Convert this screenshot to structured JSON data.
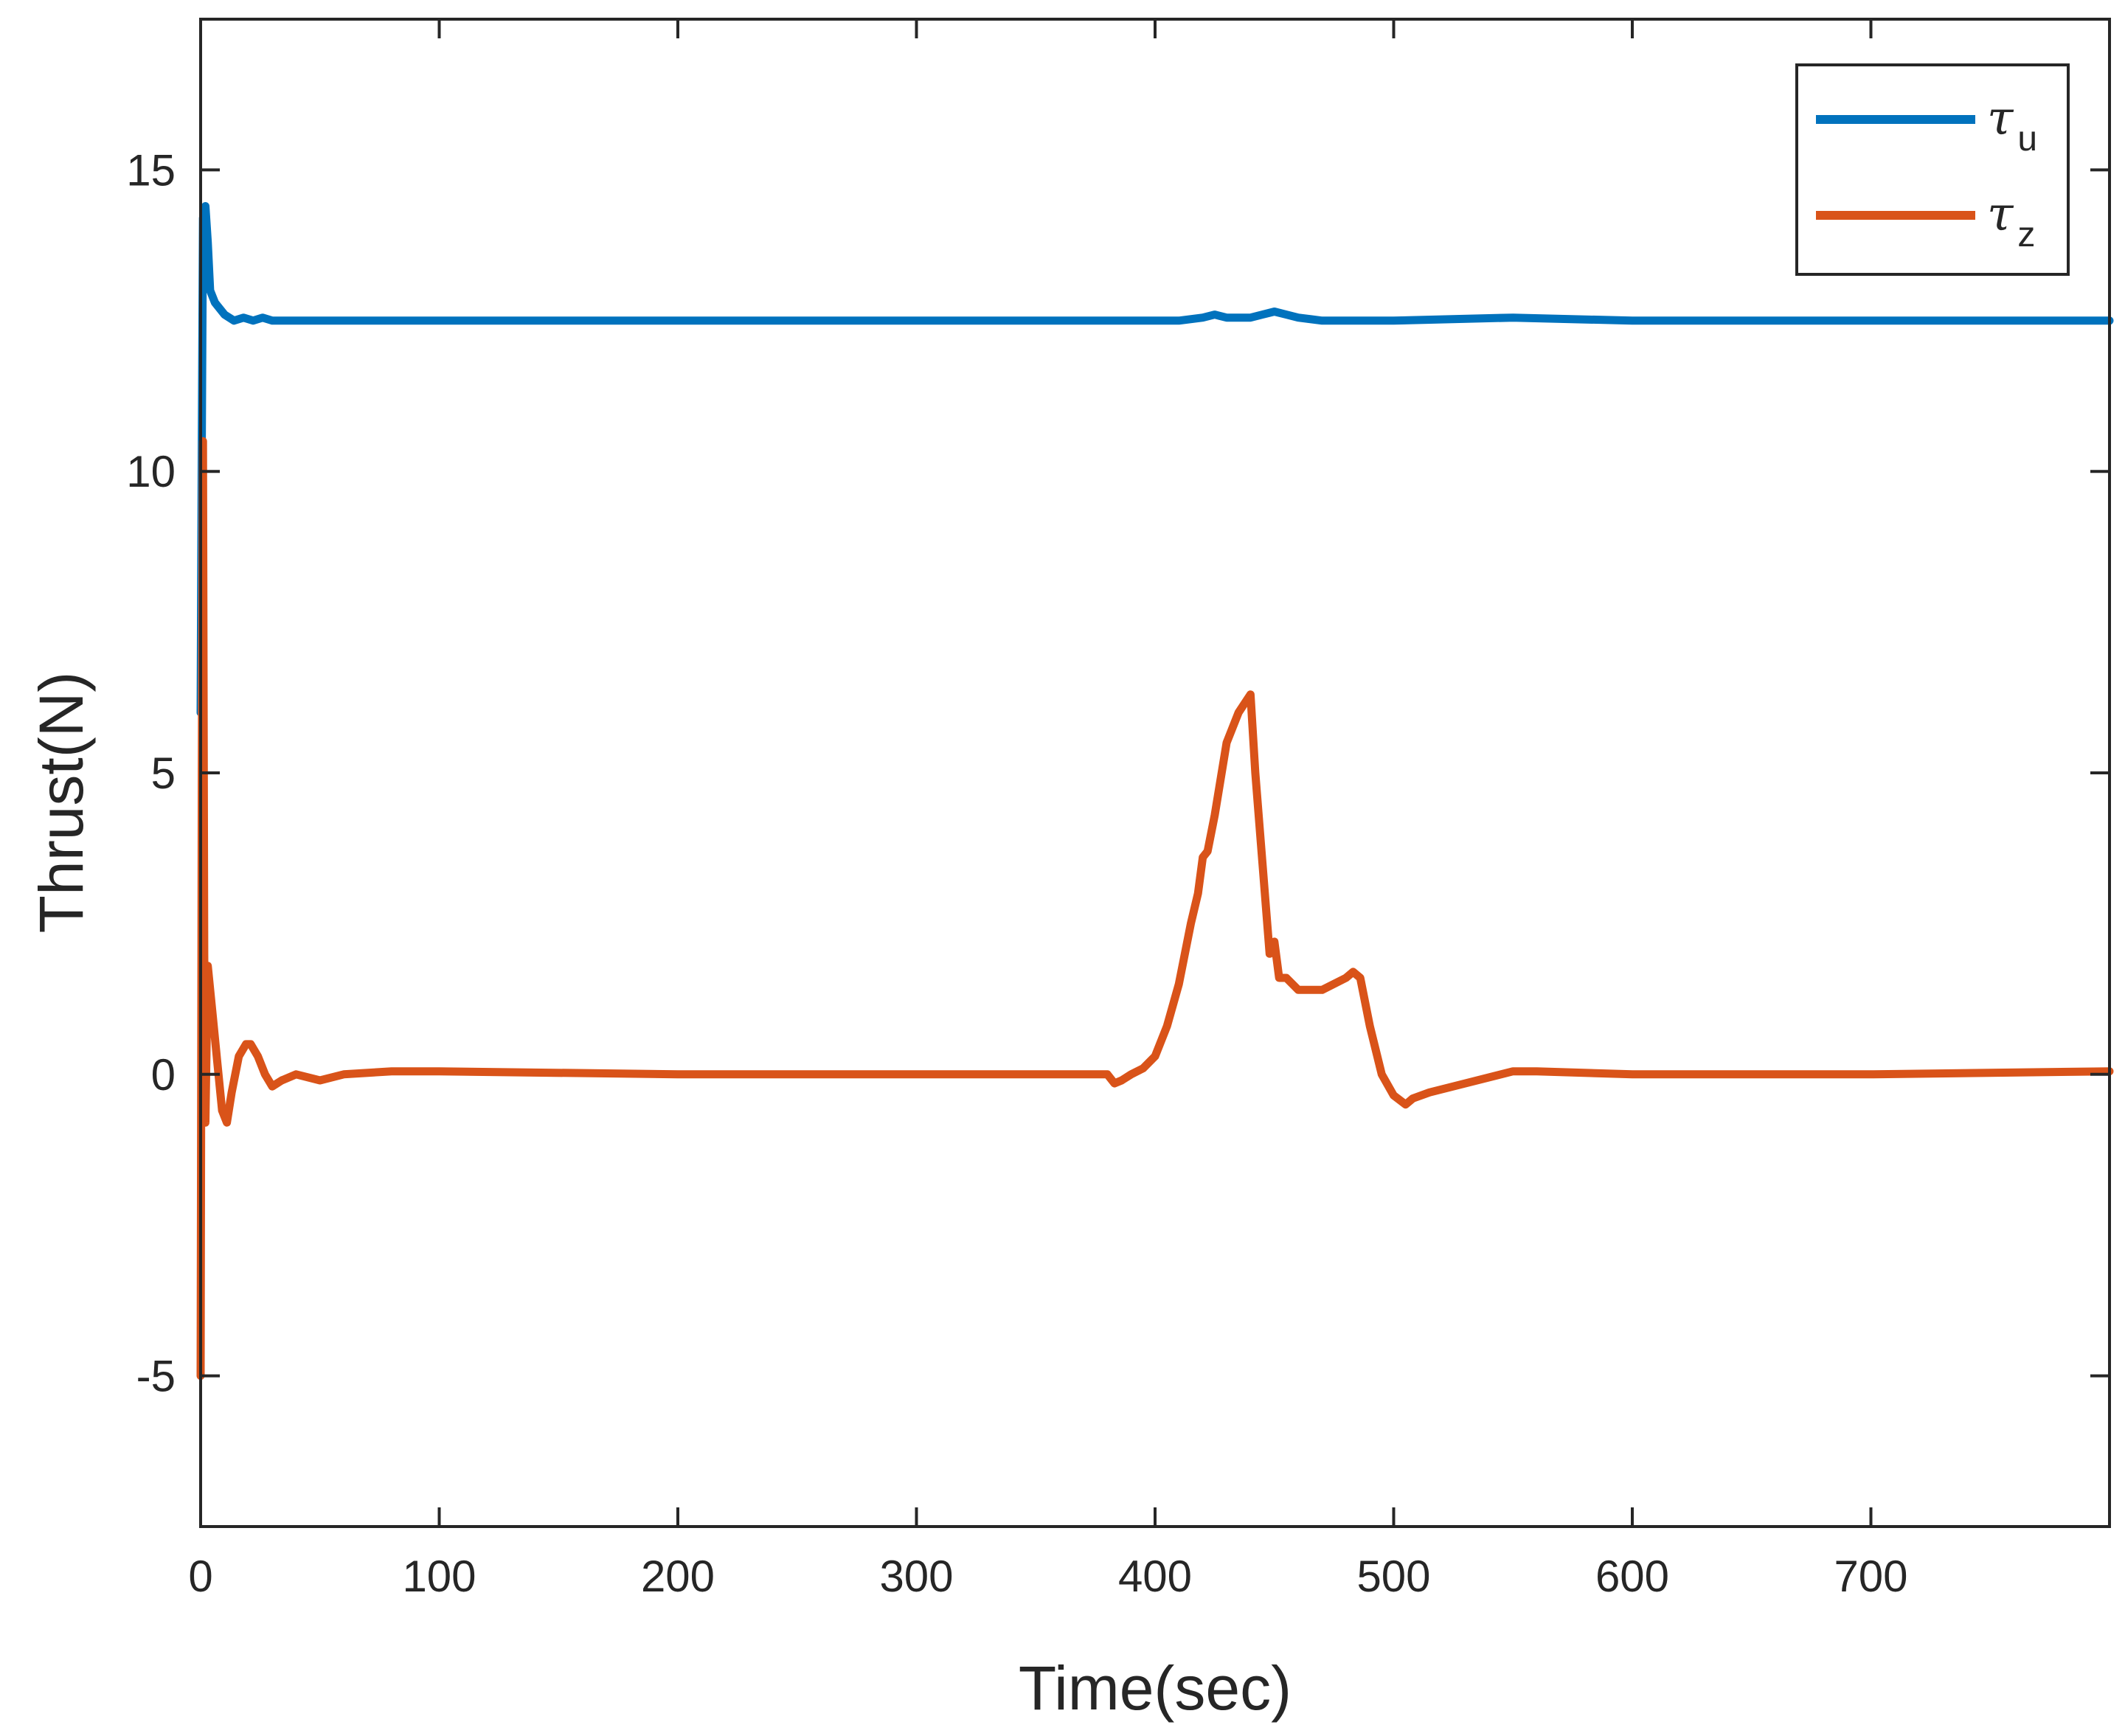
{
  "chart_data": {
    "type": "line",
    "title": "",
    "xlabel": "Time(sec)",
    "ylabel": "Thrust(N)",
    "xlim": [
      0,
      800
    ],
    "ylim": [
      -7.5,
      17.5
    ],
    "xticks": [
      0,
      100,
      200,
      300,
      400,
      500,
      600,
      700
    ],
    "xtick_labels": [
      "0",
      "100",
      "200",
      "300",
      "400",
      "500",
      "600",
      "700"
    ],
    "yticks": [
      -5,
      0,
      5,
      10,
      15
    ],
    "ytick_labels": [
      "-5",
      "0",
      "5",
      "10",
      "15"
    ],
    "grid": false,
    "legend_position": "top-right",
    "series": [
      {
        "name": "τu",
        "symbol": "τ",
        "subscript": "u",
        "color": "#0072BD",
        "x": [
          0,
          0.5,
          1,
          2,
          3,
          4,
          6,
          8,
          10,
          14,
          18,
          22,
          26,
          30,
          40,
          60,
          100,
          200,
          300,
          400,
          410,
          420,
          425,
          430,
          435,
          440,
          445,
          450,
          455,
          460,
          470,
          480,
          500,
          550,
          600,
          700,
          800
        ],
        "values": [
          6.0,
          10.5,
          14.2,
          14.4,
          13.8,
          13.0,
          12.8,
          12.7,
          12.6,
          12.5,
          12.55,
          12.5,
          12.55,
          12.5,
          12.5,
          12.5,
          12.5,
          12.5,
          12.5,
          12.5,
          12.5,
          12.55,
          12.6,
          12.55,
          12.55,
          12.55,
          12.6,
          12.65,
          12.6,
          12.55,
          12.5,
          12.5,
          12.5,
          12.55,
          12.5,
          12.5,
          12.5
        ]
      },
      {
        "name": "τz",
        "symbol": "τ",
        "subscript": "z",
        "color": "#D95319",
        "x": [
          0,
          0.5,
          1,
          1.5,
          2,
          3,
          5,
          7,
          9,
          11,
          13,
          16,
          19,
          21,
          24,
          27,
          30,
          34,
          40,
          50,
          60,
          80,
          100,
          200,
          300,
          375,
          380,
          383,
          386,
          390,
          395,
          400,
          405,
          410,
          415,
          418,
          420,
          422,
          425,
          430,
          435,
          440,
          442,
          445,
          448,
          450,
          452,
          455,
          460,
          470,
          480,
          483,
          486,
          490,
          495,
          500,
          505,
          508,
          515,
          530,
          550,
          560,
          600,
          700,
          800
        ],
        "values": [
          -5.0,
          5.0,
          10.5,
          2.0,
          -0.8,
          1.8,
          1.0,
          0.2,
          -0.6,
          -0.8,
          -0.3,
          0.3,
          0.5,
          0.5,
          0.3,
          0.0,
          -0.2,
          -0.1,
          0.0,
          -0.1,
          0.0,
          0.05,
          0.05,
          0.0,
          0.0,
          0.0,
          0.0,
          -0.15,
          -0.1,
          0.0,
          0.1,
          0.3,
          0.8,
          1.5,
          2.5,
          3.0,
          3.6,
          3.7,
          4.3,
          5.5,
          6.0,
          6.3,
          5.0,
          3.5,
          2.0,
          2.2,
          1.6,
          1.6,
          1.4,
          1.4,
          1.6,
          1.7,
          1.6,
          0.8,
          0.0,
          -0.35,
          -0.5,
          -0.4,
          -0.3,
          -0.15,
          0.05,
          0.05,
          0.0,
          0.0,
          0.05
        ]
      }
    ]
  }
}
